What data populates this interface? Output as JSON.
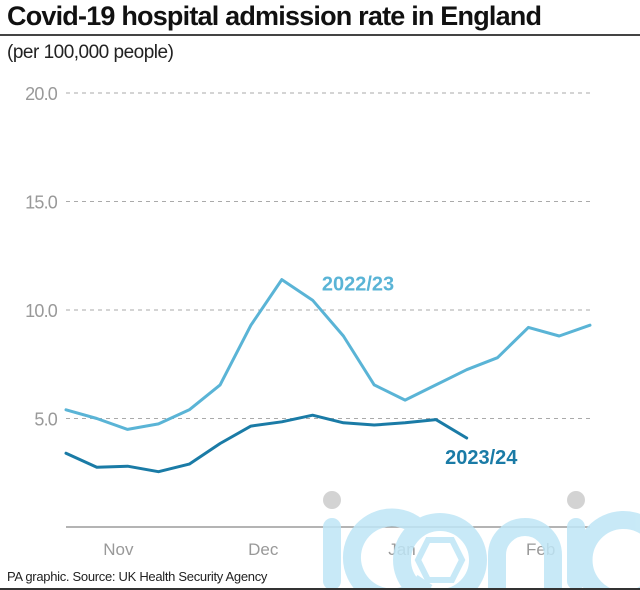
{
  "chart_data": {
    "type": "line",
    "title": "Covid-19 hospital admission rate in England",
    "subtitle": "(per 100,000 people)",
    "xlabel": "",
    "ylabel": "",
    "ylim": [
      0,
      20
    ],
    "yticks": [
      "20.0",
      "15.0",
      "10.0",
      "5.0"
    ],
    "ytick_values": [
      20,
      15,
      10,
      5
    ],
    "x_points": 18,
    "xticks": [
      {
        "label": "Nov",
        "index": 1.7
      },
      {
        "label": "Dec",
        "index": 6.4
      },
      {
        "label": "Jan",
        "index": 10.9
      },
      {
        "label": "Feb",
        "index": 15.4
      }
    ],
    "grid": true,
    "series": [
      {
        "name": "2022/23",
        "color": "#5ab4d6",
        "values": [
          5.4,
          5.0,
          4.5,
          4.75,
          5.4,
          6.55,
          9.3,
          11.4,
          10.45,
          8.8,
          6.55,
          5.85,
          6.55,
          7.25,
          7.8,
          9.2,
          8.8,
          9.3
        ],
        "label_at_index": 8.3,
        "label_value": 10.9
      },
      {
        "name": "2023/24",
        "color": "#1a7ba6",
        "values": [
          3.4,
          2.75,
          2.8,
          2.55,
          2.9,
          3.85,
          4.65,
          4.85,
          5.15,
          4.8,
          4.7,
          4.8,
          4.95,
          4.1
        ],
        "label_at_index": 12.3,
        "label_value": 2.9
      }
    ]
  },
  "source": "PA graphic. Source: UK Health Security Agency",
  "watermark": "iconic",
  "colors": {
    "grid": "#aaaaaa",
    "axis": "#888888",
    "watermark": "#bfe6f6",
    "watermark_dot": "#cccccc"
  }
}
